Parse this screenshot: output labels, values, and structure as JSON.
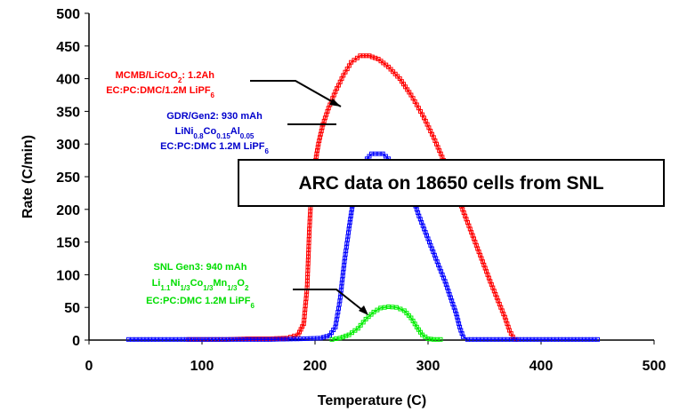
{
  "chart_data": {
    "type": "scatter",
    "title": "",
    "xlabel": "Temperature (C)",
    "ylabel": "Rate (C/min)",
    "xlim": [
      0,
      500
    ],
    "ylim": [
      0,
      500
    ],
    "x_ticks": [
      0,
      100,
      200,
      300,
      400,
      500
    ],
    "y_ticks": [
      0,
      50,
      100,
      150,
      200,
      250,
      300,
      350,
      400,
      450,
      500
    ],
    "grid": false,
    "banner": "ARC data on 18650 cells from SNL",
    "series": [
      {
        "name": "MCMB/LiCoO2: 1.2Ah EC:PC:DMC/1.2M LiPF6",
        "color": "#ff0000",
        "points": [
          [
            88,
            1
          ],
          [
            100,
            1
          ],
          [
            110,
            1
          ],
          [
            122,
            1
          ],
          [
            140,
            2
          ],
          [
            160,
            2
          ],
          [
            175,
            3
          ],
          [
            185,
            8
          ],
          [
            190,
            25
          ],
          [
            193,
            80
          ],
          [
            195,
            170
          ],
          [
            197,
            235
          ],
          [
            200,
            270
          ],
          [
            203,
            300
          ],
          [
            207,
            330
          ],
          [
            212,
            355
          ],
          [
            218,
            380
          ],
          [
            225,
            405
          ],
          [
            232,
            425
          ],
          [
            240,
            435
          ],
          [
            248,
            435
          ],
          [
            256,
            430
          ],
          [
            265,
            418
          ],
          [
            275,
            400
          ],
          [
            285,
            375
          ],
          [
            295,
            345
          ],
          [
            305,
            310
          ],
          [
            315,
            270
          ],
          [
            325,
            225
          ],
          [
            335,
            180
          ],
          [
            345,
            135
          ],
          [
            355,
            90
          ],
          [
            362,
            60
          ],
          [
            368,
            35
          ],
          [
            372,
            15
          ],
          [
            375,
            5
          ],
          [
            378,
            1
          ]
        ]
      },
      {
        "name": "GDR/Gen2: 930 mAh LiNi0.8Co0.15Al0.05 EC:PC:DMC 1.2M LiPF6",
        "color": "#0000ff",
        "points": [
          [
            35,
            1
          ],
          [
            45,
            1
          ],
          [
            60,
            1
          ],
          [
            70,
            1
          ],
          [
            80,
            1
          ],
          [
            120,
            1
          ],
          [
            160,
            1
          ],
          [
            190,
            2
          ],
          [
            205,
            3
          ],
          [
            213,
            7
          ],
          [
            218,
            20
          ],
          [
            222,
            60
          ],
          [
            226,
            120
          ],
          [
            230,
            170
          ],
          [
            233,
            205
          ],
          [
            237,
            245
          ],
          [
            242,
            270
          ],
          [
            250,
            285
          ],
          [
            260,
            285
          ],
          [
            270,
            270
          ],
          [
            278,
            250
          ],
          [
            285,
            225
          ],
          [
            292,
            190
          ],
          [
            300,
            155
          ],
          [
            308,
            120
          ],
          [
            315,
            90
          ],
          [
            320,
            65
          ],
          [
            325,
            40
          ],
          [
            328,
            20
          ],
          [
            331,
            5
          ],
          [
            335,
            1
          ],
          [
            380,
            1
          ],
          [
            420,
            1
          ],
          [
            450,
            1
          ]
        ]
      },
      {
        "name": "SNL Gen3: 940 mAh Li1.1Ni1/3Co1/3Mn1/3O2 EC:PC:DMC 1.2M LiPF6",
        "color": "#00ee00",
        "points": [
          [
            215,
            1
          ],
          [
            222,
            3
          ],
          [
            230,
            8
          ],
          [
            238,
            18
          ],
          [
            245,
            32
          ],
          [
            252,
            43
          ],
          [
            258,
            49
          ],
          [
            265,
            51
          ],
          [
            272,
            50
          ],
          [
            279,
            45
          ],
          [
            285,
            34
          ],
          [
            290,
            20
          ],
          [
            295,
            8
          ],
          [
            300,
            2
          ],
          [
            305,
            1
          ],
          [
            311,
            1
          ]
        ]
      }
    ],
    "annotations": {
      "red": {
        "lines": [
          "MCMB/LiCoO",
          "2",
          ": 1.2Ah",
          "EC:PC:DMC/1.2M LiPF",
          "6"
        ]
      },
      "blue": {
        "lines": [
          "GDR/Gen2: 930 mAh",
          "LiNi",
          "0.8",
          "Co",
          "0.15",
          "Al",
          "0.05",
          "EC:PC:DMC 1.2M LiPF",
          "6"
        ]
      },
      "green": {
        "lines": [
          "SNL Gen3: 940 mAh",
          "Li",
          "1.1",
          "Ni",
          "1/3",
          "Co",
          "1/3",
          "Mn",
          "1/3",
          "O",
          "2",
          "EC:PC:DMC 1.2M LiPF",
          "6"
        ]
      }
    }
  }
}
